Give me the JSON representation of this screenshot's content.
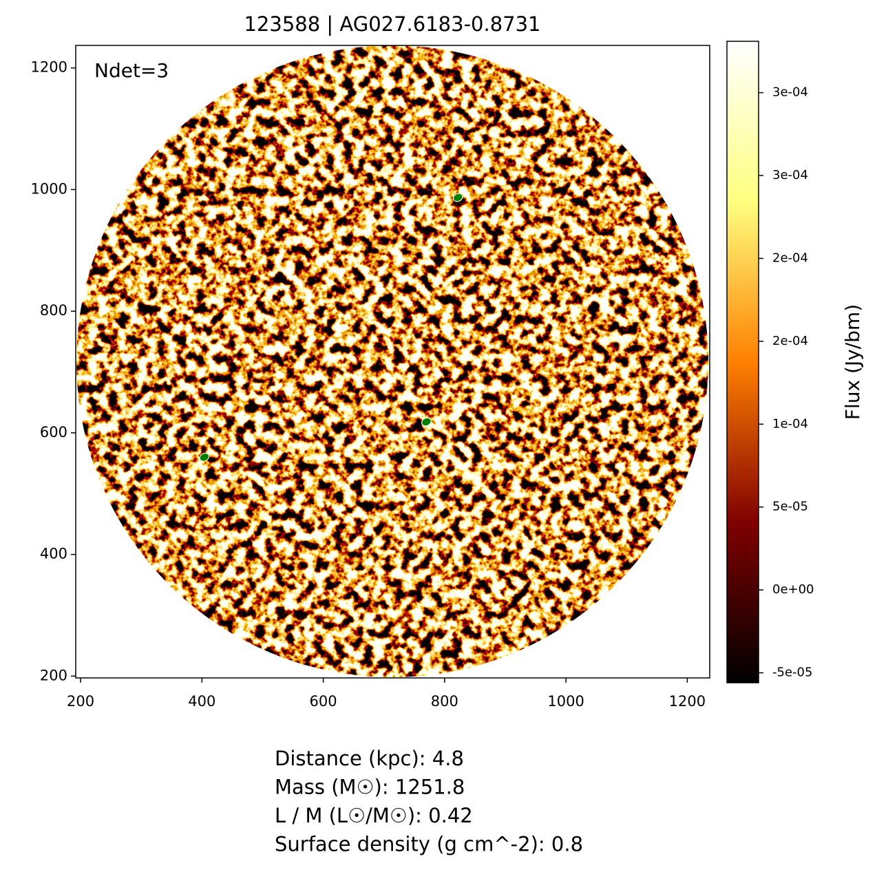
{
  "chart_data": {
    "type": "image",
    "title": "123588 | AG027.6183-0.8731",
    "annotation": "Ndet=3",
    "xlim": [
      192,
      1237
    ],
    "ylim": [
      197,
      1237
    ],
    "xticks": [
      200,
      400,
      600,
      800,
      1000,
      1200
    ],
    "yticks": [
      200,
      400,
      600,
      800,
      1000,
      1200
    ],
    "detections": {
      "x": [
        404,
        770,
        822
      ],
      "y": [
        560,
        618,
        987
      ],
      "color": "#008000"
    },
    "colorbar": {
      "label": "Flux (Jy/bm)",
      "lim": [
        -5.6e-05,
        0.000331
      ],
      "ticks": [
        {
          "value": -5e-05,
          "label": "-5e-05"
        },
        {
          "value": 0,
          "label": "0e+00"
        },
        {
          "value": 5e-05,
          "label": "5e-05"
        },
        {
          "value": 0.0001,
          "label": "1e-04"
        },
        {
          "value": 0.00015,
          "label": "2e-04"
        },
        {
          "value": 0.0002,
          "label": "2e-04"
        },
        {
          "value": 0.00025,
          "label": "3e-04"
        },
        {
          "value": 0.0003,
          "label": "3e-04"
        }
      ],
      "colormap": [
        "#000000",
        "#800000",
        "#ff8000",
        "#ffff80",
        "#ffffff"
      ]
    }
  },
  "footer": {
    "lines": [
      "Distance (kpc): 4.8",
      "Mass (M☉): 1251.8",
      "L / M (L☉/M☉): 0.42",
      "Surface density (g cm^-2): 0.8"
    ]
  }
}
